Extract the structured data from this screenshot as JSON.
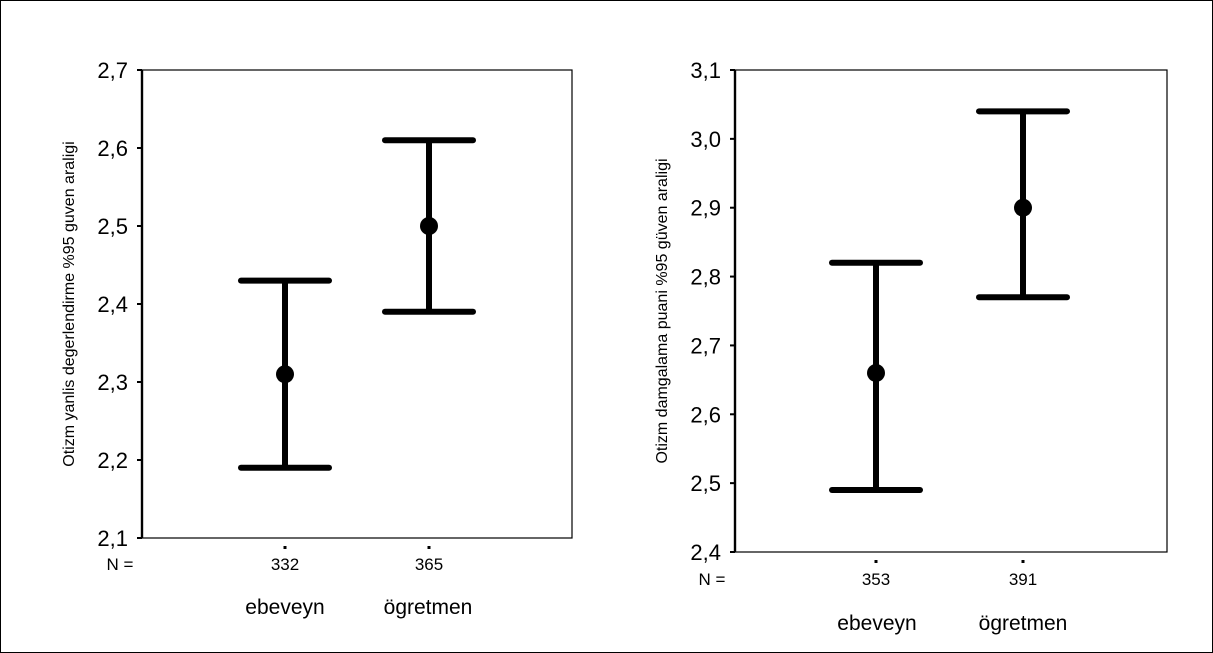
{
  "chart_data": [
    {
      "type": "errorbar",
      "ylabel": "Otizm yanlis degerlendirme %95 guven araligi",
      "ylim": [
        2.1,
        2.7
      ],
      "yticks": [
        2.1,
        2.2,
        2.3,
        2.4,
        2.5,
        2.6,
        2.7
      ],
      "ytick_labels": [
        "2,1",
        "2,2",
        "2,3",
        "2,4",
        "2,5",
        "2,6",
        "2,7"
      ],
      "categories": [
        "ebeveyn",
        "ögretmen"
      ],
      "n_label": "N =",
      "n_values": [
        "332",
        "365"
      ],
      "means": [
        2.31,
        2.5
      ],
      "lower": [
        2.19,
        2.39
      ],
      "upper": [
        2.43,
        2.61
      ],
      "grid": false
    },
    {
      "type": "errorbar",
      "ylabel": "Otizm damgalama puani %95 güven araligi",
      "ylim": [
        2.4,
        3.1
      ],
      "yticks": [
        2.4,
        2.5,
        2.6,
        2.7,
        2.8,
        2.9,
        3.0,
        3.1
      ],
      "ytick_labels": [
        "2,4",
        "2,5",
        "2,6",
        "2,7",
        "2,8",
        "2,9",
        "3,0",
        "3,1"
      ],
      "categories": [
        "ebeveyn",
        "ögretmen"
      ],
      "n_label": "N =",
      "n_values": [
        "353",
        "391"
      ],
      "means": [
        2.66,
        2.9
      ],
      "lower": [
        2.49,
        2.77
      ],
      "upper": [
        2.82,
        3.04
      ],
      "grid": false
    }
  ]
}
